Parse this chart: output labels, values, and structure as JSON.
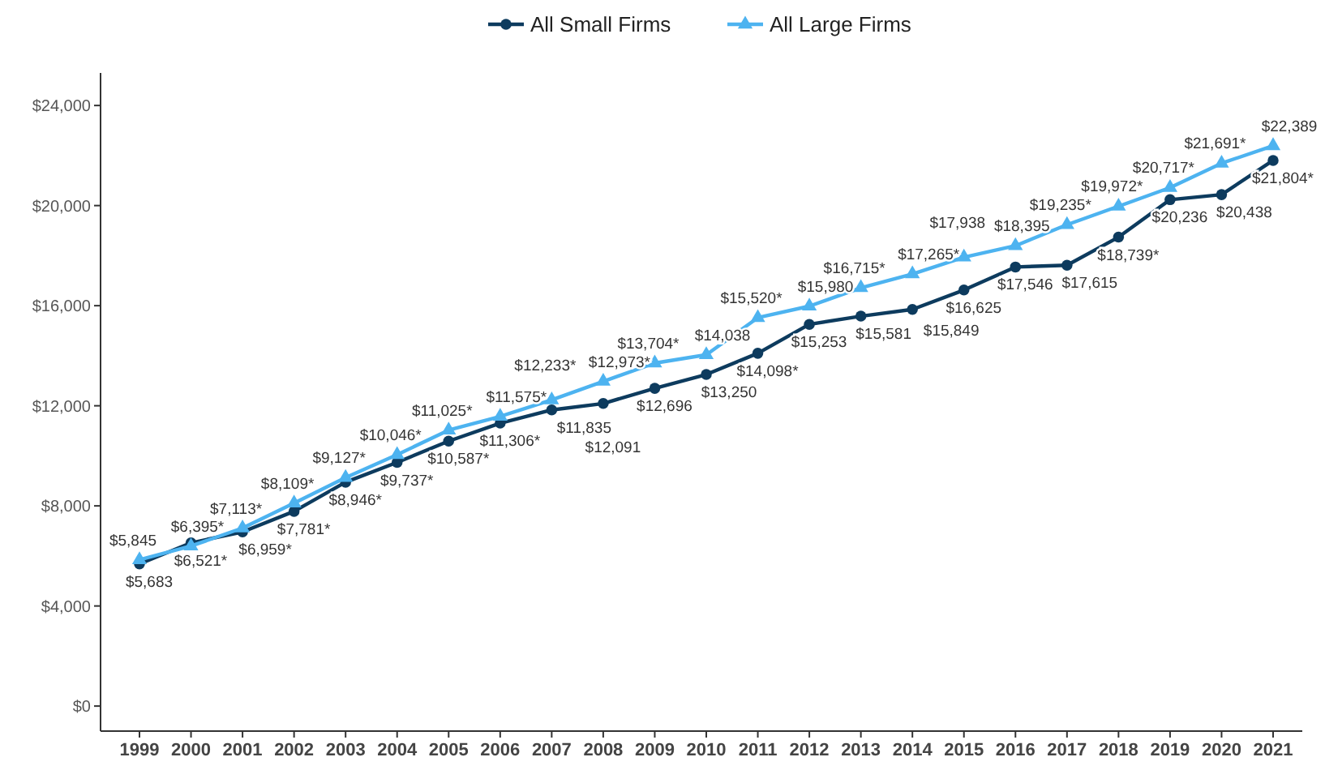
{
  "chart_data": {
    "type": "line",
    "categories": [
      "1999",
      "2000",
      "2001",
      "2002",
      "2003",
      "2004",
      "2005",
      "2006",
      "2007",
      "2008",
      "2009",
      "2010",
      "2011",
      "2012",
      "2013",
      "2014",
      "2015",
      "2016",
      "2017",
      "2018",
      "2019",
      "2020",
      "2021"
    ],
    "series": [
      {
        "name": "All Small Firms",
        "color": "#0d3b5e",
        "marker": "circle",
        "values": [
          5683,
          6521,
          6959,
          7781,
          8946,
          9737,
          10587,
          11306,
          11835,
          12091,
          12696,
          13250,
          14098,
          15253,
          15581,
          15849,
          16625,
          17546,
          17615,
          18739,
          20236,
          20438,
          21804
        ],
        "value_labels": [
          "$5,683",
          "$6,521*",
          "$6,959*",
          "$7,781*",
          "$8,946*",
          "$9,737*",
          "$10,587*",
          "$11,306*",
          "$11,835",
          "$12,091",
          "$12,696",
          "$13,250",
          "$14,098*",
          "$15,253",
          "$15,581",
          "$15,849",
          "$16,625",
          "$17,546",
          "$17,615",
          "$18,739*",
          "$20,236",
          "$20,438",
          "$21,804*"
        ]
      },
      {
        "name": "All Large Firms",
        "color": "#4db3f0",
        "marker": "triangle",
        "values": [
          5845,
          6395,
          7113,
          8109,
          9127,
          10046,
          11025,
          11575,
          12233,
          12973,
          13704,
          14038,
          15520,
          15980,
          16715,
          17265,
          17938,
          18395,
          19235,
          19972,
          20717,
          21691,
          22389
        ],
        "value_labels": [
          "$5,845",
          "$6,395*",
          "$7,113*",
          "$8,109*",
          "$9,127*",
          "$10,046*",
          "$11,025*",
          "$11,575*",
          "$12,233*",
          "$12,973*",
          "$13,704*",
          "$14,038",
          "$15,520*",
          "$15,980",
          "$16,715*",
          "$17,265*",
          "$17,938",
          "$18,395",
          "$19,235*",
          "$19,972*",
          "$20,717*",
          "$21,691*",
          "$22,389"
        ]
      }
    ],
    "ylim": [
      -1000,
      25300
    ],
    "yticks": [
      {
        "value": 0,
        "label": "$0"
      },
      {
        "value": 4000,
        "label": "$4,000"
      },
      {
        "value": 8000,
        "label": "$8,000"
      },
      {
        "value": 12000,
        "label": "$12,000"
      },
      {
        "value": 16000,
        "label": "$16,000"
      },
      {
        "value": 20000,
        "label": "$20,000"
      },
      {
        "value": 24000,
        "label": "$24,000"
      }
    ],
    "legend": "top",
    "line_style": "solid"
  }
}
